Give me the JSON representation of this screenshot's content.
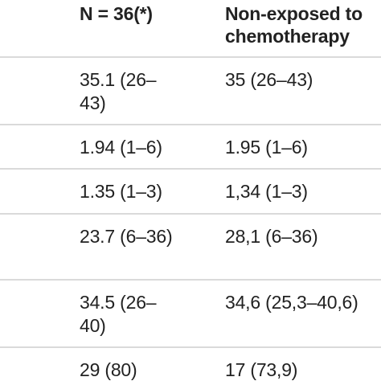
{
  "table": {
    "header": {
      "col1": "N = 36(*)",
      "col2_line1": "Non-exposed to",
      "col2_line2": "chemotherapy"
    },
    "rows": [
      {
        "col1": [
          "35.1 (26–",
          "43)"
        ],
        "col2": [
          "35 (26–43)"
        ]
      },
      {
        "col1": [
          "1.94 (1–6)"
        ],
        "col2": [
          "1.95 (1–6)"
        ]
      },
      {
        "col1": [
          "1.35 (1–3)"
        ],
        "col2": [
          "1,34 (1–3)"
        ]
      },
      {
        "col1": [
          "23.7 (6–36)"
        ],
        "col2": [
          "28,1 (6–36)"
        ]
      },
      {
        "col1": [
          "34.5 (26–",
          "40)"
        ],
        "col2": [
          "34,6 (25,3–40,6)"
        ]
      },
      {
        "col1": [
          "29 (80)"
        ],
        "col2": [
          "17 (73,9)"
        ]
      }
    ]
  }
}
